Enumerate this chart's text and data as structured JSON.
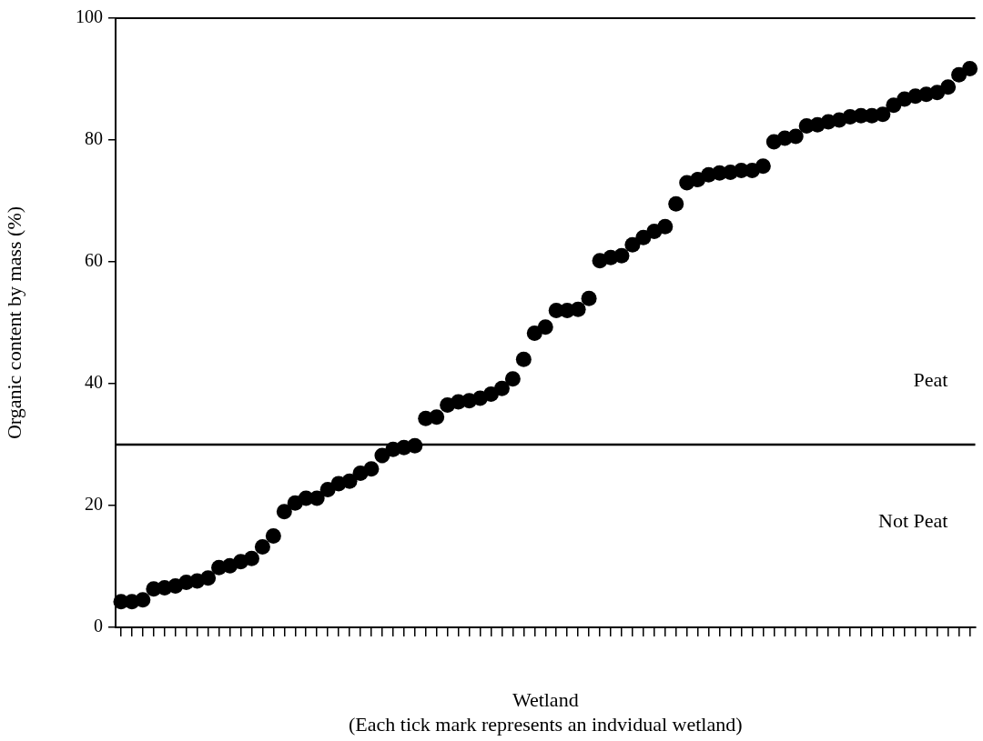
{
  "chart_data": {
    "type": "scatter",
    "xlabel": "Wetland\n(Each tick mark represents an indvidual wetland)",
    "ylabel": "Organic content by mass (%)",
    "categories": [
      null,
      null,
      null,
      null,
      null,
      null,
      null,
      null,
      null,
      null,
      null,
      null,
      null,
      null,
      null,
      null,
      null,
      null,
      null,
      null,
      null,
      null,
      null,
      null,
      null,
      null,
      null,
      null,
      null,
      null,
      null,
      null,
      null,
      null,
      null,
      null,
      null,
      null,
      null,
      null,
      null,
      null,
      null,
      null,
      null,
      null,
      null,
      null,
      null,
      null,
      null,
      null,
      null,
      null,
      null,
      null,
      null,
      null,
      null,
      null,
      null,
      null,
      null,
      null,
      null,
      null,
      null,
      null,
      null,
      null,
      null,
      null,
      null,
      null,
      null,
      null,
      null,
      null,
      null
    ],
    "series": [
      {
        "color": "#000000",
        "values": [
          4.2,
          4.2,
          4.5,
          6.3,
          6.5,
          6.8,
          7.4,
          7.6,
          8.1,
          9.8,
          10.1,
          10.8,
          11.3,
          13.2,
          15,
          19,
          20.4,
          21.2,
          21.2,
          22.6,
          23.6,
          24,
          25.3,
          26,
          28.2,
          29.2,
          29.5,
          29.8,
          34.3,
          34.5,
          36.5,
          37,
          37.2,
          37.6,
          38.3,
          39.2,
          40.8,
          44,
          48.3,
          49.3,
          52,
          52,
          52.2,
          54,
          60.2,
          60.7,
          61,
          62.8,
          64,
          65,
          65.8,
          69.5,
          73,
          73.5,
          74.3,
          74.6,
          74.7,
          75,
          75,
          75.7,
          79.7,
          80.3,
          80.6,
          82.3,
          82.5,
          83,
          83.3,
          83.8,
          84,
          84,
          84.2,
          85.7,
          86.7,
          87.2,
          87.5,
          87.8,
          88.7,
          90.7,
          91.7
        ]
      }
    ],
    "ylim": [
      0,
      100
    ],
    "yticks": [
      0,
      20,
      40,
      60,
      80,
      100
    ],
    "grid": false,
    "legend": false,
    "marker": "circle",
    "ref_lines": [
      {
        "axis": "y",
        "value": 30,
        "color": "#000000"
      }
    ],
    "annotations": [
      "Peat",
      "Not Peat"
    ]
  }
}
